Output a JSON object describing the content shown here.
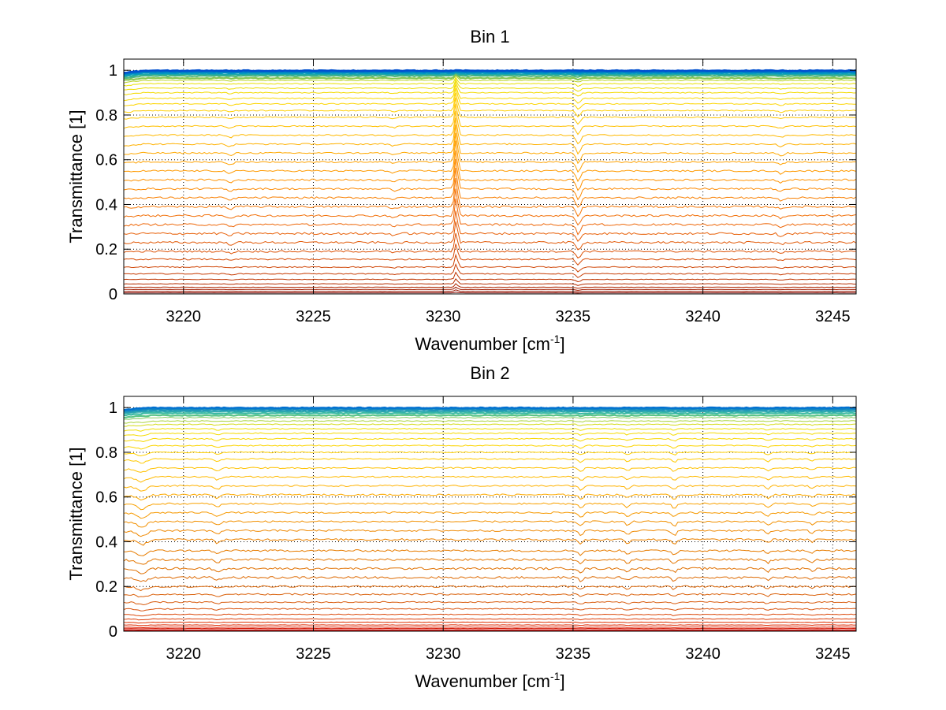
{
  "chart_data": [
    {
      "type": "line",
      "title": "Bin 1",
      "xlabel": "Wavenumber [cm",
      "xlabel_sup": "-1",
      "xlabel_end": "]",
      "ylabel": "Transmittance [1]",
      "xlim": [
        3217.7,
        3245.9
      ],
      "ylim": [
        0,
        1.05
      ],
      "xticks": [
        3220,
        3225,
        3230,
        3235,
        3240,
        3245
      ],
      "yticks": [
        0,
        0.2,
        0.4,
        0.6,
        0.8,
        1
      ],
      "grid": true,
      "colormap": [
        "#7f0000",
        "#b22a00",
        "#d64a05",
        "#f06a0a",
        "#ff9000",
        "#ffb300",
        "#ffd400",
        "#e8e000",
        "#00a0c0",
        "#0050d0"
      ],
      "series_levels": [
        0.0,
        0.005,
        0.012,
        0.02,
        0.03,
        0.045,
        0.065,
        0.09,
        0.12,
        0.155,
        0.19,
        0.23,
        0.27,
        0.31,
        0.35,
        0.39,
        0.43,
        0.47,
        0.51,
        0.55,
        0.59,
        0.63,
        0.67,
        0.71,
        0.75,
        0.79,
        0.82,
        0.85,
        0.875,
        0.9,
        0.92,
        0.94,
        0.955,
        0.965,
        0.975,
        0.982,
        0.988,
        0.992,
        0.995,
        0.997,
        0.999
      ],
      "features": [
        {
          "x": 3230.5,
          "effect": 0.35,
          "width": 0.08
        },
        {
          "x": 3235.2,
          "effect": -0.12,
          "width": 0.12
        },
        {
          "x": 3221.8,
          "effect": -0.03,
          "width": 0.15
        },
        {
          "x": 3228.1,
          "effect": -0.02,
          "width": 0.15
        },
        {
          "x": 3243.0,
          "effect": -0.03,
          "width": 0.15
        }
      ]
    },
    {
      "type": "line",
      "title": "Bin 2",
      "xlabel": "Wavenumber [cm",
      "xlabel_sup": "-1",
      "xlabel_end": "]",
      "ylabel": "Transmittance [1]",
      "xlim": [
        3217.7,
        3245.9
      ],
      "ylim": [
        0,
        1.05
      ],
      "xticks": [
        3220,
        3225,
        3230,
        3235,
        3240,
        3245
      ],
      "yticks": [
        0,
        0.2,
        0.4,
        0.6,
        0.8,
        1
      ],
      "grid": true,
      "colormap": [
        "#cc0000",
        "#e02a00",
        "#d85a10",
        "#e07000",
        "#f08a00",
        "#ffb000",
        "#ffd000",
        "#f0e000",
        "#40c0a0",
        "#0070d0"
      ],
      "series_levels": [
        0.002,
        0.006,
        0.012,
        0.018,
        0.028,
        0.04,
        0.055,
        0.075,
        0.1,
        0.13,
        0.165,
        0.2,
        0.24,
        0.28,
        0.32,
        0.36,
        0.41,
        0.45,
        0.49,
        0.53,
        0.57,
        0.61,
        0.65,
        0.69,
        0.73,
        0.77,
        0.8,
        0.83,
        0.86,
        0.885,
        0.905,
        0.925,
        0.94,
        0.955,
        0.965,
        0.975,
        0.983,
        0.99,
        0.995,
        0.999
      ],
      "features": [
        {
          "x": 3218.4,
          "effect": -0.06,
          "width": 0.25
        },
        {
          "x": 3221.3,
          "effect": -0.04,
          "width": 0.15
        },
        {
          "x": 3235.3,
          "effect": -0.05,
          "width": 0.12
        },
        {
          "x": 3237.1,
          "effect": -0.04,
          "width": 0.12
        },
        {
          "x": 3238.9,
          "effect": -0.05,
          "width": 0.12
        },
        {
          "x": 3242.5,
          "effect": -0.04,
          "width": 0.12
        },
        {
          "x": 3244.2,
          "effect": -0.03,
          "width": 0.12
        }
      ]
    }
  ]
}
